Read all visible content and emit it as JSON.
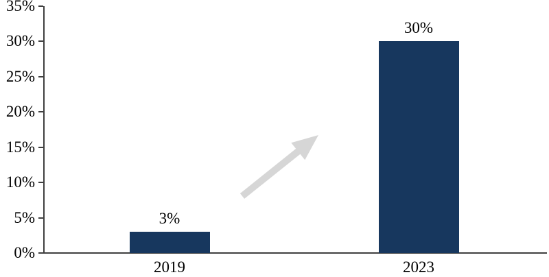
{
  "page": {
    "background": "#ffffff"
  },
  "chart_data": {
    "type": "bar",
    "title": "",
    "xlabel": "",
    "ylabel": "",
    "categories": [
      "2019",
      "2023"
    ],
    "values": [
      3,
      30
    ],
    "data_labels": [
      "3%",
      "30%"
    ],
    "y_ticks": [
      "35%",
      "30%",
      "25%",
      "20%",
      "15%",
      "10%",
      "5%",
      "0%"
    ],
    "ylim": [
      0,
      35
    ],
    "y_tick_step": 5,
    "grid": false,
    "legend": false,
    "bar_color": "#17375E",
    "axis_color": "#3F3F3F",
    "text_color": "#000000",
    "annotation": {
      "type": "arrow",
      "direction": "up-right",
      "color": "#D6D6D6"
    }
  }
}
